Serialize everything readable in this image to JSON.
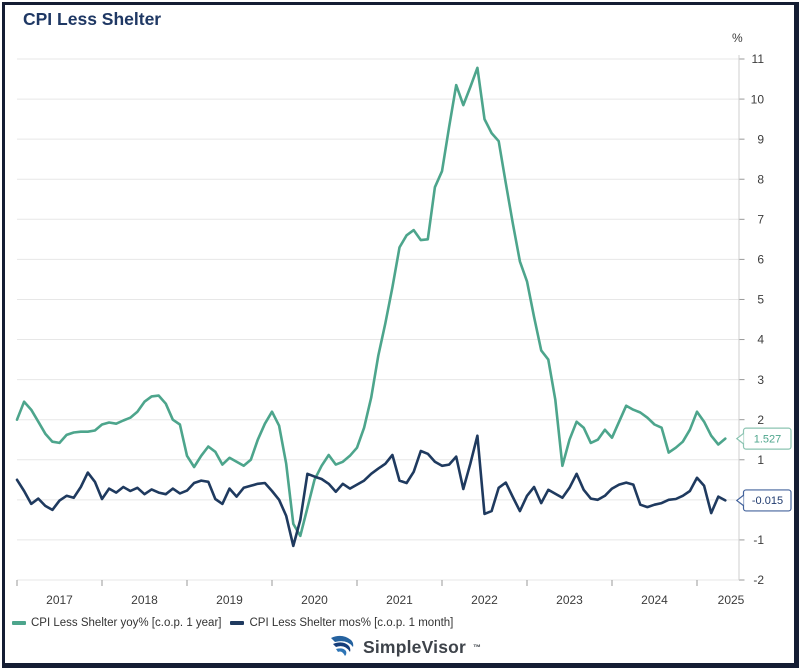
{
  "header": {
    "title": "CPI Less Shelter"
  },
  "y_axis": {
    "unit_label": "%",
    "ticks": [
      11,
      10,
      9,
      8,
      7,
      6,
      5,
      4,
      3,
      2,
      1,
      0,
      -1,
      -2
    ],
    "min": -2,
    "max": 11
  },
  "x_axis": {
    "years": [
      "2017",
      "2018",
      "2019",
      "2020",
      "2021",
      "2022",
      "2023",
      "2024",
      "2025"
    ]
  },
  "legend": [
    {
      "label": "CPI Less Shelter yoy% [c.o.p. 1 year]",
      "color": "#4da58c"
    },
    {
      "label": "CPI Less Shelter mos% [c.o.p. 1 month]",
      "color": "#1f3a5f"
    }
  ],
  "callouts": [
    {
      "value": "1.527",
      "text_color": "#4da58c",
      "border_color": "#8cc4b2"
    },
    {
      "value": "-0.015",
      "text_color": "#1f3a6e",
      "border_color": "#44639c"
    }
  ],
  "branding": {
    "name": "SimpleVisor",
    "tm": "™"
  },
  "colors": {
    "grid": "#e7e7e7",
    "axis_line": "#cfcfcf",
    "tick": "#999999",
    "axis_text": "#3c3c3c",
    "title": "#1f3864",
    "frame": "#141d33"
  },
  "chart_data": {
    "type": "line",
    "title": "CPI Less Shelter",
    "ylabel": "%",
    "ylim": [
      -2,
      11
    ],
    "x_start_year": 2017.0,
    "x_step": "monthly",
    "grid": true,
    "legend_position": "bottom-left",
    "series": [
      {
        "name": "CPI Less Shelter yoy% [c.o.p. 1 year]",
        "color": "#4da58c",
        "last_value": 1.527,
        "values": [
          2.0,
          2.45,
          2.25,
          1.95,
          1.65,
          1.45,
          1.42,
          1.62,
          1.68,
          1.7,
          1.7,
          1.73,
          1.88,
          1.93,
          1.9,
          1.98,
          2.05,
          2.2,
          2.45,
          2.58,
          2.6,
          2.4,
          2.0,
          1.88,
          1.1,
          0.82,
          1.1,
          1.33,
          1.2,
          0.88,
          1.05,
          0.95,
          0.85,
          1.0,
          1.5,
          1.9,
          2.2,
          1.85,
          0.9,
          -0.6,
          -0.9,
          -0.2,
          0.5,
          0.85,
          1.12,
          0.88,
          0.95,
          1.1,
          1.3,
          1.8,
          2.55,
          3.6,
          4.4,
          5.3,
          6.3,
          6.6,
          6.73,
          6.48,
          6.5,
          7.8,
          8.2,
          9.3,
          10.35,
          9.85,
          10.3,
          10.78,
          9.5,
          9.15,
          8.95,
          7.9,
          6.9,
          5.95,
          5.45,
          4.56,
          3.73,
          3.5,
          2.5,
          0.85,
          1.5,
          1.95,
          1.8,
          1.42,
          1.5,
          1.75,
          1.55,
          1.95,
          2.35,
          2.25,
          2.18,
          2.05,
          1.88,
          1.8,
          1.18,
          1.3,
          1.45,
          1.75,
          2.2,
          1.95,
          1.6,
          1.38,
          1.527
        ]
      },
      {
        "name": "CPI Less Shelter mos% [c.o.p. 1 month]",
        "color": "#1f3a5f",
        "last_value": -0.015,
        "values": [
          0.5,
          0.22,
          -0.1,
          0.03,
          -0.15,
          -0.25,
          -0.02,
          0.1,
          0.05,
          0.32,
          0.68,
          0.45,
          0.02,
          0.28,
          0.18,
          0.32,
          0.22,
          0.3,
          0.14,
          0.26,
          0.18,
          0.14,
          0.28,
          0.16,
          0.23,
          0.42,
          0.48,
          0.45,
          0.02,
          -0.1,
          0.28,
          0.08,
          0.3,
          0.35,
          0.4,
          0.42,
          0.22,
          0.0,
          -0.4,
          -1.15,
          -0.5,
          0.65,
          0.58,
          0.52,
          0.4,
          0.2,
          0.4,
          0.28,
          0.38,
          0.48,
          0.65,
          0.78,
          0.9,
          1.12,
          0.48,
          0.42,
          0.7,
          1.22,
          1.15,
          0.95,
          0.85,
          0.88,
          1.08,
          0.27,
          0.9,
          1.6,
          -0.35,
          -0.28,
          0.3,
          0.43,
          0.07,
          -0.28,
          0.1,
          0.32,
          -0.08,
          0.25,
          0.15,
          0.05,
          0.3,
          0.65,
          0.25,
          0.03,
          0.0,
          0.1,
          0.28,
          0.38,
          0.43,
          0.38,
          -0.12,
          -0.18,
          -0.12,
          -0.08,
          0.0,
          0.02,
          0.1,
          0.22,
          0.55,
          0.35,
          -0.33,
          0.08,
          -0.015
        ]
      }
    ]
  }
}
